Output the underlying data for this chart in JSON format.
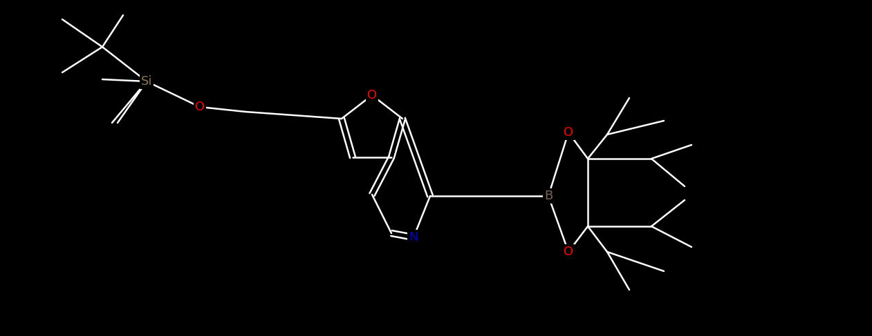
{
  "bg": "#000000",
  "bond_color": "#ffffff",
  "lw": 1.8,
  "atom_colors": {
    "O": "#ff0000",
    "N": "#0000cc",
    "B": "#7a6652",
    "Si": "#8B7355",
    "C": "#ffffff"
  },
  "figsize": [
    12.61,
    4.87
  ],
  "dpi": 100,
  "atoms": {
    "Si": {
      "label": "Si",
      "color": "#8B7355"
    },
    "O1": {
      "label": "O",
      "color": "#ff0000"
    },
    "O2": {
      "label": "O",
      "color": "#ff0000"
    },
    "O3": {
      "label": "O",
      "color": "#ff0000"
    },
    "O4": {
      "label": "O",
      "color": "#ff0000"
    },
    "N": {
      "label": "N",
      "color": "#0000cc"
    },
    "B": {
      "label": "B",
      "color": "#7a6652"
    }
  }
}
